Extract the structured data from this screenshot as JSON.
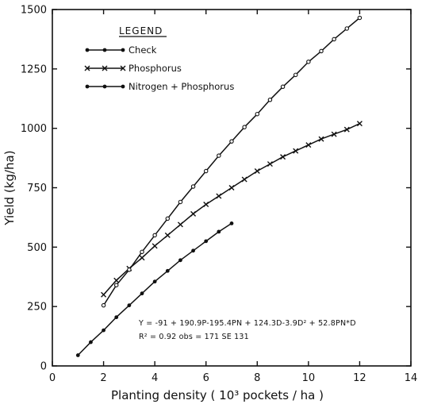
{
  "chart_data": {
    "type": "line",
    "xlabel": "Planting density ( 10³ pockets / ha )",
    "ylabel": "Yield (kg/ha)",
    "xlim": [
      0,
      14
    ],
    "ylim": [
      0,
      1500
    ],
    "xticks": [
      0,
      2,
      4,
      6,
      8,
      10,
      12,
      14
    ],
    "yticks": [
      0,
      250,
      500,
      750,
      1000,
      1250,
      1500
    ],
    "grid": false,
    "legend": {
      "title": "LEGEND",
      "placement": "top-left"
    },
    "series": [
      {
        "name": "Check",
        "marker": "filled-dot",
        "x": [
          1,
          1.5,
          2,
          2.5,
          3,
          3.5,
          4,
          4.5,
          5,
          5.5,
          6,
          6.5,
          7
        ],
        "y": [
          45,
          100,
          150,
          205,
          255,
          305,
          355,
          400,
          445,
          485,
          525,
          565,
          600
        ]
      },
      {
        "name": "Phosphorus",
        "marker": "cross",
        "x": [
          2,
          2.5,
          3,
          3.5,
          4,
          4.5,
          5,
          5.5,
          6,
          6.5,
          7,
          7.5,
          8,
          8.5,
          9,
          9.5,
          10,
          10.5,
          11,
          11.5,
          12
        ],
        "y": [
          300,
          360,
          410,
          455,
          505,
          550,
          595,
          640,
          680,
          715,
          750,
          785,
          820,
          850,
          880,
          905,
          930,
          955,
          975,
          995,
          1020
        ]
      },
      {
        "name": "Nitrogen + Phosphorus",
        "marker": "open-dot",
        "x": [
          2,
          2.5,
          3,
          3.5,
          4,
          4.5,
          5,
          5.5,
          6,
          6.5,
          7,
          7.5,
          8,
          8.5,
          9,
          9.5,
          10,
          10.5,
          11,
          11.5,
          12
        ],
        "y": [
          255,
          340,
          405,
          480,
          550,
          620,
          690,
          755,
          820,
          885,
          945,
          1005,
          1060,
          1120,
          1175,
          1225,
          1280,
          1325,
          1375,
          1420,
          1465
        ]
      }
    ],
    "annotations": [
      "Y = -91 + 190.9P-195.4PN + 124.3D-3.9D² + 52.8PN*D",
      "R² = 0.92   obs = 171   SE 131"
    ]
  }
}
